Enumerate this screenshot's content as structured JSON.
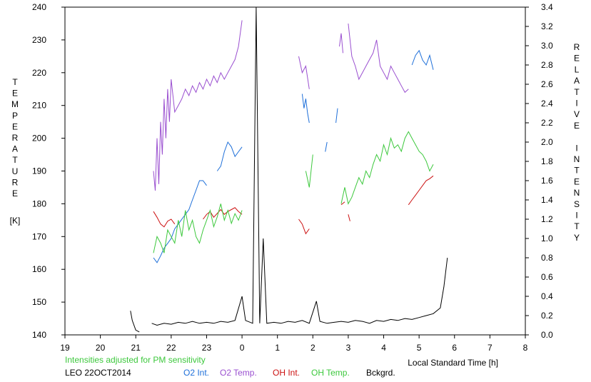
{
  "chart_data": {
    "type": "line",
    "title": "",
    "xlabel": "Local Standard Time [h]",
    "x_ticks": [
      "19",
      "20",
      "21",
      "22",
      "23",
      "0",
      "1",
      "2",
      "3",
      "4",
      "5",
      "6",
      "7",
      "8"
    ],
    "xlim": [
      19,
      32
    ],
    "ylabel_left": [
      "T",
      "E",
      "M",
      "P",
      "E",
      "R",
      "A",
      "T",
      "U",
      "R",
      "E"
    ],
    "ylabel_left_unit": "[K]",
    "ylim_left": [
      140,
      240
    ],
    "y_ticks_left": [
      "140",
      "150",
      "160",
      "170",
      "180",
      "190",
      "200",
      "210",
      "220",
      "230",
      "240"
    ],
    "ylabel_right": [
      "R",
      "E",
      "L",
      "A",
      "T",
      "I",
      "V",
      "E",
      "",
      "I",
      "N",
      "T",
      "E",
      "N",
      "S",
      "I",
      "T",
      "Y"
    ],
    "ylim_right": [
      0.0,
      3.4
    ],
    "y_ticks_right": [
      "0.0",
      "0.2",
      "0.4",
      "0.6",
      "0.8",
      "1.0",
      "1.2",
      "1.4",
      "1.6",
      "1.8",
      "2.0",
      "2.2",
      "2.4",
      "2.6",
      "2.8",
      "3.0",
      "3.2",
      "3.4"
    ],
    "note": "Intensities adjusted for PM sensitivity",
    "site_date": "LEO 22OCT2014",
    "grid": false,
    "legend_position": "bottom",
    "series": [
      {
        "name": "O2 Int.",
        "color": "#1e6fd9",
        "axis": "right",
        "segments": [
          [
            [
              21.5,
              0.8
            ],
            [
              21.6,
              0.75
            ],
            [
              21.7,
              0.82
            ],
            [
              21.8,
              0.9
            ],
            [
              21.9,
              0.95
            ],
            [
              22.0,
              1.0
            ],
            [
              22.1,
              1.1
            ],
            [
              22.2,
              1.15
            ],
            [
              22.3,
              1.2
            ],
            [
              22.4,
              1.25
            ],
            [
              22.5,
              1.3
            ],
            [
              22.6,
              1.4
            ],
            [
              22.7,
              1.5
            ],
            [
              22.8,
              1.6
            ],
            [
              22.9,
              1.6
            ],
            [
              23.0,
              1.55
            ]
          ],
          [
            [
              23.3,
              1.7
            ],
            [
              23.4,
              1.75
            ],
            [
              23.5,
              1.9
            ],
            [
              23.6,
              2.0
            ],
            [
              23.7,
              1.95
            ],
            [
              23.8,
              1.85
            ],
            [
              23.9,
              1.9
            ],
            [
              24.0,
              1.95
            ]
          ],
          [
            [
              25.7,
              2.5
            ],
            [
              25.75,
              2.35
            ],
            [
              25.8,
              2.45
            ],
            [
              25.85,
              2.3
            ],
            [
              25.9,
              2.2
            ]
          ],
          [
            [
              26.35,
              1.9
            ],
            [
              26.4,
              2.0
            ]
          ],
          [
            [
              26.65,
              2.2
            ],
            [
              26.7,
              2.35
            ]
          ],
          [
            [
              28.8,
              2.8
            ],
            [
              28.9,
              2.9
            ],
            [
              29.0,
              2.95
            ],
            [
              29.1,
              2.85
            ],
            [
              29.2,
              2.8
            ],
            [
              29.3,
              2.9
            ],
            [
              29.4,
              2.75
            ]
          ]
        ]
      },
      {
        "name": "O2 Temp.",
        "color": "#9a4fd0",
        "axis": "left",
        "segments": [
          [
            [
              21.5,
              190
            ],
            [
              21.55,
              184
            ],
            [
              21.6,
              200
            ],
            [
              21.65,
              186
            ],
            [
              21.7,
              205
            ],
            [
              21.75,
              195
            ],
            [
              21.8,
              212
            ],
            [
              21.85,
              200
            ],
            [
              21.9,
              215
            ],
            [
              21.95,
              205
            ],
            [
              22.0,
              218
            ],
            [
              22.1,
              208
            ],
            [
              22.2,
              210
            ],
            [
              22.3,
              212
            ],
            [
              22.4,
              215
            ],
            [
              22.5,
              213
            ],
            [
              22.6,
              216
            ],
            [
              22.7,
              214
            ],
            [
              22.8,
              217
            ],
            [
              22.9,
              215
            ],
            [
              23.0,
              218
            ],
            [
              23.1,
              216
            ],
            [
              23.2,
              219
            ],
            [
              23.3,
              217
            ],
            [
              23.4,
              220
            ],
            [
              23.5,
              218
            ],
            [
              23.6,
              220
            ],
            [
              23.7,
              222
            ],
            [
              23.8,
              224
            ],
            [
              23.9,
              228
            ],
            [
              24.0,
              236
            ]
          ],
          [
            [
              25.6,
              225
            ],
            [
              25.7,
              220
            ],
            [
              25.8,
              222
            ],
            [
              25.9,
              215
            ]
          ],
          [
            [
              26.75,
              228
            ],
            [
              26.8,
              232
            ],
            [
              26.85,
              226
            ]
          ],
          [
            [
              27.0,
              235
            ],
            [
              27.1,
              225
            ],
            [
              27.2,
              222
            ],
            [
              27.3,
              218
            ],
            [
              27.4,
              220
            ],
            [
              27.5,
              222
            ],
            [
              27.6,
              224
            ],
            [
              27.7,
              226
            ],
            [
              27.8,
              230
            ],
            [
              27.9,
              222
            ],
            [
              28.0,
              220
            ],
            [
              28.1,
              218
            ],
            [
              28.2,
              222
            ],
            [
              28.3,
              220
            ],
            [
              28.4,
              218
            ],
            [
              28.5,
              216
            ],
            [
              28.6,
              214
            ],
            [
              28.7,
              215
            ]
          ]
        ]
      },
      {
        "name": "OH Int.",
        "color": "#cc1111",
        "axis": "right",
        "segments": [
          [
            [
              21.5,
              1.28
            ],
            [
              21.6,
              1.22
            ],
            [
              21.7,
              1.15
            ],
            [
              21.8,
              1.12
            ],
            [
              21.9,
              1.18
            ],
            [
              22.0,
              1.2
            ],
            [
              22.1,
              1.15
            ]
          ],
          [
            [
              22.9,
              1.2
            ],
            [
              23.0,
              1.25
            ],
            [
              23.1,
              1.28
            ],
            [
              23.2,
              1.22
            ],
            [
              23.3,
              1.26
            ],
            [
              23.4,
              1.3
            ],
            [
              23.5,
              1.25
            ],
            [
              23.6,
              1.28
            ],
            [
              23.7,
              1.3
            ],
            [
              23.8,
              1.32
            ],
            [
              23.9,
              1.28
            ],
            [
              24.0,
              1.25
            ]
          ],
          [
            [
              25.6,
              1.2
            ],
            [
              25.7,
              1.15
            ],
            [
              25.8,
              1.05
            ],
            [
              25.9,
              1.1
            ]
          ],
          [
            [
              26.8,
              1.35
            ],
            [
              26.9,
              1.38
            ]
          ],
          [
            [
              27.0,
              1.25
            ],
            [
              27.05,
              1.18
            ]
          ],
          [
            [
              28.7,
              1.35
            ],
            [
              28.8,
              1.4
            ],
            [
              28.9,
              1.45
            ],
            [
              29.0,
              1.5
            ],
            [
              29.1,
              1.55
            ],
            [
              29.2,
              1.6
            ],
            [
              29.3,
              1.62
            ],
            [
              29.4,
              1.65
            ]
          ]
        ]
      },
      {
        "name": "OH Temp.",
        "color": "#3cc83c",
        "axis": "left",
        "segments": [
          [
            [
              21.5,
              165
            ],
            [
              21.6,
              170
            ],
            [
              21.7,
              168
            ],
            [
              21.8,
              165
            ],
            [
              21.9,
              172
            ],
            [
              22.0,
              170
            ],
            [
              22.1,
              168
            ],
            [
              22.2,
              175
            ],
            [
              22.3,
              170
            ],
            [
              22.4,
              178
            ],
            [
              22.5,
              172
            ],
            [
              22.6,
              175
            ],
            [
              22.7,
              170
            ],
            [
              22.8,
              168
            ],
            [
              22.9,
              172
            ],
            [
              23.0,
              175
            ],
            [
              23.1,
              178
            ],
            [
              23.2,
              173
            ],
            [
              23.3,
              176
            ],
            [
              23.4,
              180
            ],
            [
              23.5,
              175
            ],
            [
              23.6,
              178
            ],
            [
              23.7,
              174
            ],
            [
              23.8,
              177
            ],
            [
              23.9,
              175
            ],
            [
              24.0,
              178
            ]
          ],
          [
            [
              25.8,
              190
            ],
            [
              25.9,
              185
            ],
            [
              26.0,
              195
            ]
          ],
          [
            [
              26.8,
              180
            ],
            [
              26.9,
              185
            ],
            [
              27.0,
              180
            ],
            [
              27.1,
              182
            ],
            [
              27.2,
              185
            ],
            [
              27.3,
              188
            ],
            [
              27.4,
              186
            ],
            [
              27.5,
              190
            ],
            [
              27.6,
              188
            ],
            [
              27.7,
              192
            ],
            [
              27.8,
              195
            ],
            [
              27.9,
              193
            ],
            [
              28.0,
              198
            ],
            [
              28.1,
              195
            ],
            [
              28.2,
              200
            ],
            [
              28.3,
              197
            ],
            [
              28.4,
              198
            ],
            [
              28.5,
              196
            ],
            [
              28.6,
              200
            ],
            [
              28.7,
              202
            ],
            [
              28.8,
              200
            ],
            [
              28.9,
              198
            ],
            [
              29.0,
              196
            ],
            [
              29.1,
              195
            ],
            [
              29.2,
              193
            ],
            [
              29.3,
              190
            ],
            [
              29.4,
              192
            ]
          ]
        ]
      },
      {
        "name": "Bckgrd.",
        "color": "#000000",
        "axis": "right",
        "segments": [
          [
            [
              20.85,
              0.25
            ],
            [
              20.9,
              0.15
            ],
            [
              21.0,
              0.05
            ],
            [
              21.1,
              0.03
            ]
          ],
          [
            [
              21.45,
              0.12
            ],
            [
              21.6,
              0.1
            ],
            [
              21.8,
              0.12
            ],
            [
              22.0,
              0.11
            ],
            [
              22.2,
              0.13
            ],
            [
              22.4,
              0.12
            ],
            [
              22.6,
              0.14
            ],
            [
              22.8,
              0.12
            ],
            [
              23.0,
              0.13
            ],
            [
              23.2,
              0.12
            ],
            [
              23.4,
              0.14
            ],
            [
              23.6,
              0.13
            ],
            [
              23.8,
              0.15
            ],
            [
              24.0,
              0.4
            ],
            [
              24.1,
              0.15
            ],
            [
              24.3,
              0.12
            ],
            [
              24.4,
              3.4
            ],
            [
              24.5,
              0.12
            ],
            [
              24.6,
              1.0
            ],
            [
              24.7,
              0.12
            ],
            [
              24.9,
              0.13
            ],
            [
              25.1,
              0.12
            ],
            [
              25.3,
              0.14
            ],
            [
              25.5,
              0.13
            ],
            [
              25.7,
              0.15
            ],
            [
              25.9,
              0.12
            ],
            [
              26.1,
              0.35
            ],
            [
              26.2,
              0.14
            ],
            [
              26.4,
              0.12
            ],
            [
              26.6,
              0.13
            ],
            [
              26.8,
              0.14
            ],
            [
              27.0,
              0.13
            ],
            [
              27.2,
              0.15
            ],
            [
              27.4,
              0.14
            ],
            [
              27.6,
              0.12
            ],
            [
              27.8,
              0.15
            ],
            [
              28.0,
              0.14
            ],
            [
              28.2,
              0.16
            ],
            [
              28.4,
              0.15
            ],
            [
              28.6,
              0.17
            ],
            [
              28.8,
              0.16
            ],
            [
              29.0,
              0.18
            ],
            [
              29.2,
              0.2
            ],
            [
              29.4,
              0.22
            ],
            [
              29.6,
              0.28
            ],
            [
              29.7,
              0.5
            ],
            [
              29.8,
              0.8
            ]
          ]
        ]
      }
    ]
  }
}
